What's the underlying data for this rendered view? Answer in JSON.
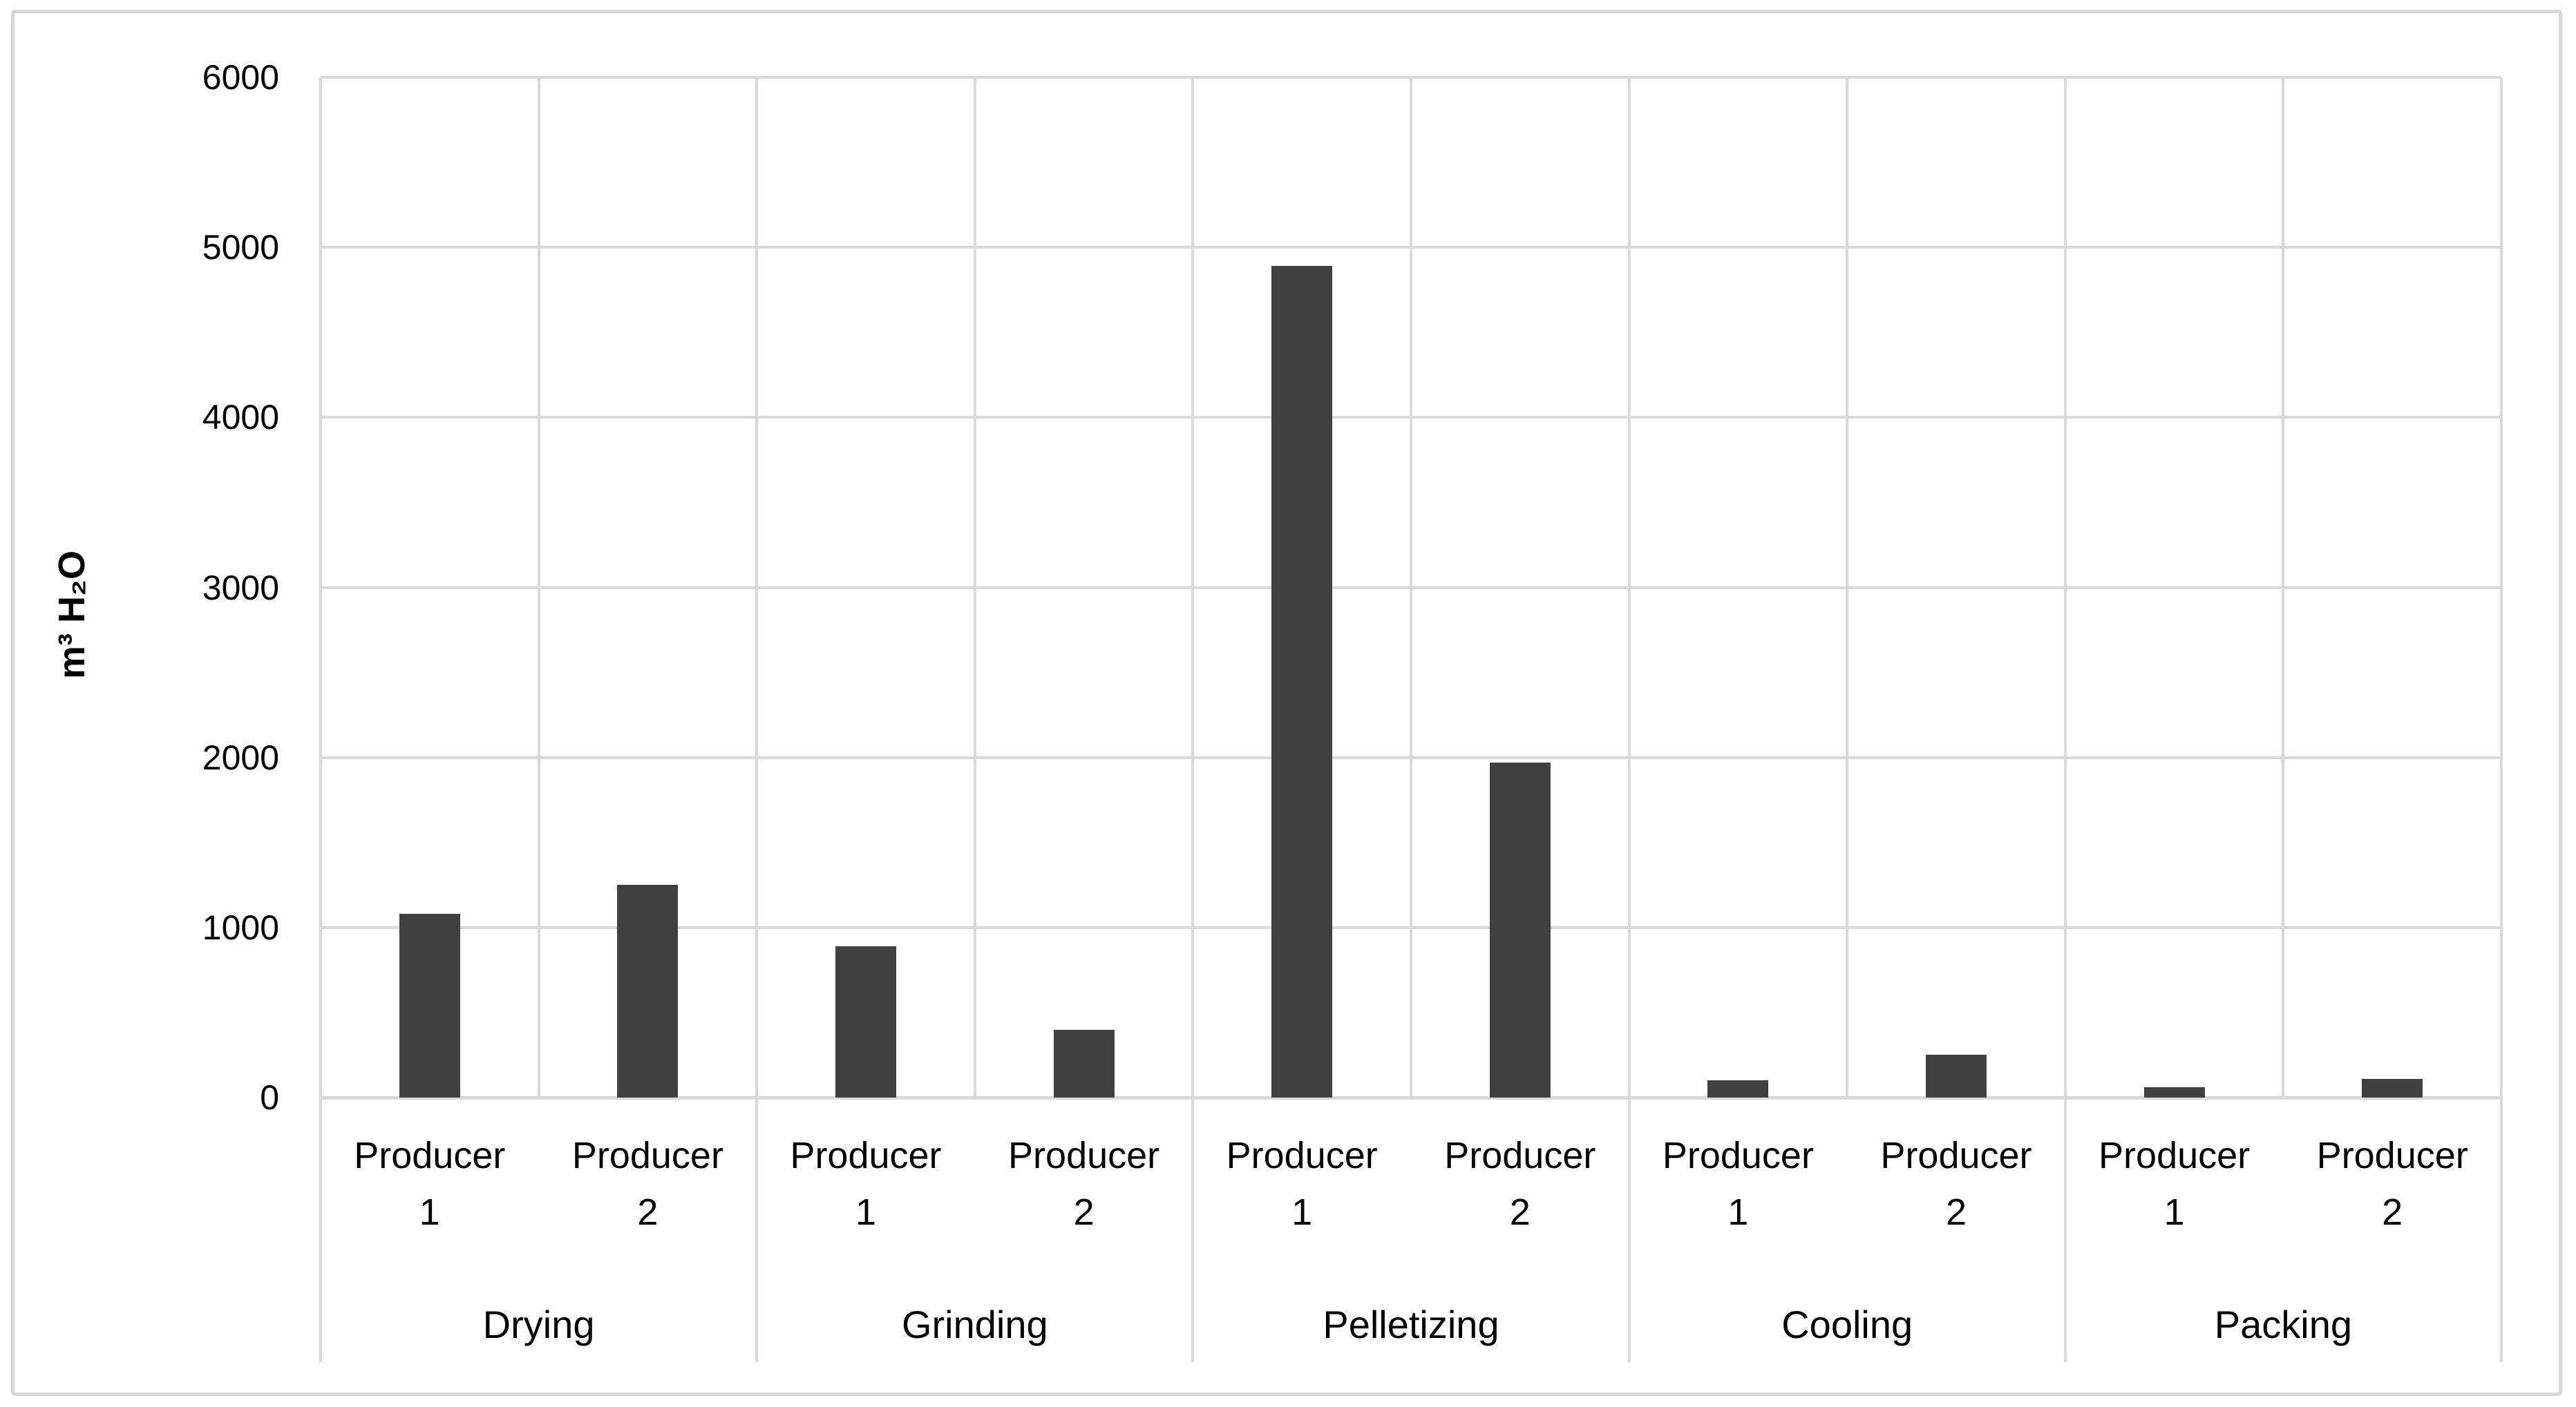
{
  "chart_data": {
    "type": "bar",
    "title": "",
    "xlabel": "",
    "ylabel": "m³ H₂O",
    "ylim": [
      0,
      6000
    ],
    "ytick_step": 1000,
    "yticks": [
      0,
      1000,
      2000,
      3000,
      4000,
      5000,
      6000
    ],
    "grid": true,
    "legend": "none",
    "bar_color": "#404040",
    "gridline_color": "#d9d9d9",
    "text_color": "#000000",
    "categories": [
      "Drying",
      "Grinding",
      "Pelletizing",
      "Cooling",
      "Packing"
    ],
    "series": [
      {
        "name": "Producer 1",
        "values": [
          1080,
          890,
          4890,
          100,
          60
        ]
      },
      {
        "name": "Producer 2",
        "values": [
          1250,
          400,
          1970,
          250,
          110
        ]
      }
    ],
    "bars_flat": [
      {
        "category": "Drying",
        "producer": "Producer 1",
        "value": 1080
      },
      {
        "category": "Drying",
        "producer": "Producer 2",
        "value": 1250
      },
      {
        "category": "Grinding",
        "producer": "Producer 1",
        "value": 890
      },
      {
        "category": "Grinding",
        "producer": "Producer 2",
        "value": 400
      },
      {
        "category": "Pelletizing",
        "producer": "Producer 1",
        "value": 4890
      },
      {
        "category": "Pelletizing",
        "producer": "Producer 2",
        "value": 1970
      },
      {
        "category": "Cooling",
        "producer": "Producer 1",
        "value": 100
      },
      {
        "category": "Cooling",
        "producer": "Producer 2",
        "value": 250
      },
      {
        "category": "Packing",
        "producer": "Producer 1",
        "value": 60
      },
      {
        "category": "Packing",
        "producer": "Producer 2",
        "value": 110
      }
    ]
  }
}
